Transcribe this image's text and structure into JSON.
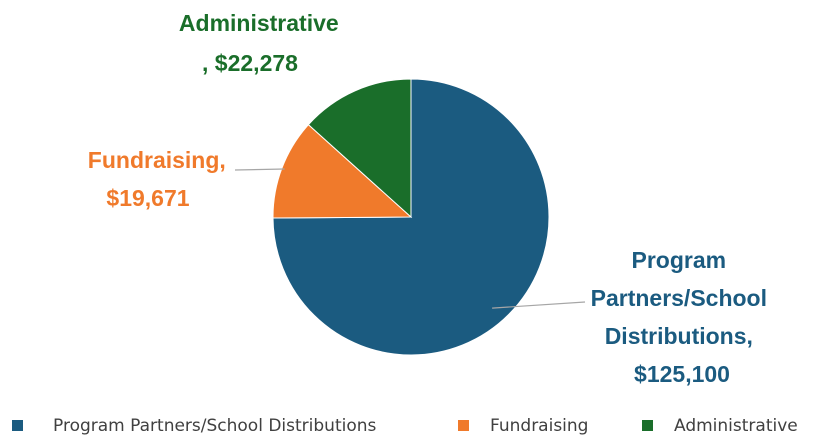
{
  "chart_data": {
    "type": "pie",
    "categories": [
      "Program Partners/School Distributions",
      "Fundraising",
      "Administrative"
    ],
    "values": [
      125100,
      19671,
      22278
    ],
    "colors": [
      "#1b5b80",
      "#f07a2b",
      "#1a6e2a"
    ],
    "data_labels": [
      [
        "Program",
        "Partners/School",
        "Distributions,",
        "$125,100"
      ],
      [
        "Fundraising,",
        "$19,671"
      ],
      [
        "Administrative",
        ",  $22,278"
      ]
    ],
    "legend": {
      "position": "bottom",
      "entries": [
        "Program Partners/School Distributions",
        "Fundraising",
        "Administrative"
      ]
    }
  }
}
